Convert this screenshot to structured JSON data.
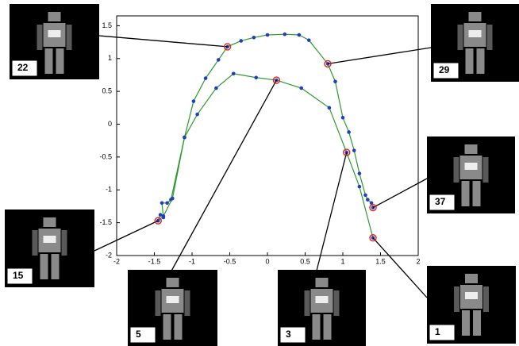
{
  "chart_data": {
    "type": "line",
    "xlim": [
      -2,
      2
    ],
    "ylim": [
      -2,
      1.65
    ],
    "xticks": [
      -2,
      -1.5,
      -1,
      -0.5,
      0,
      0.5,
      1,
      1.5,
      2
    ],
    "yticks": [
      -2,
      -1.5,
      -1,
      -0.5,
      0,
      0.5,
      1,
      1.5
    ],
    "series": [
      {
        "color": "#2e9a2e",
        "marker_color": "#1f3fbf",
        "x": [
          -1.45,
          -1.42,
          -1.38,
          -1.4,
          -1.33,
          -1.28,
          -1.1,
          -0.98,
          -0.82,
          -0.65,
          -0.53,
          -0.35,
          -0.18,
          0.0,
          0.23,
          0.42,
          0.55,
          0.8,
          0.9,
          1.0,
          1.08,
          1.15,
          1.22,
          1.3,
          1.33,
          1.38,
          1.4
        ],
        "values": [
          -1.47,
          -1.38,
          -1.42,
          -1.2,
          -1.2,
          -1.15,
          -0.2,
          0.35,
          0.7,
          0.98,
          1.18,
          1.27,
          1.32,
          1.36,
          1.37,
          1.36,
          1.28,
          0.92,
          0.65,
          0.1,
          -0.12,
          -0.4,
          -0.75,
          -1.08,
          -1.15,
          -1.2,
          -1.27
        ]
      },
      {
        "color": "#2e9a2e",
        "marker_color": "#1f3fbf",
        "x": [
          -1.45,
          -1.38,
          -1.26,
          -1.1,
          -0.93,
          -0.68,
          -0.45,
          -0.15,
          0.12,
          0.45,
          0.82,
          1.05,
          1.22,
          1.4
        ],
        "values": [
          -1.47,
          -1.4,
          -1.13,
          -0.2,
          0.15,
          0.55,
          0.77,
          0.71,
          0.67,
          0.55,
          0.25,
          -0.43,
          -0.95,
          -1.73
        ]
      }
    ],
    "annotations": [
      {
        "label": "22",
        "x": -0.53,
        "y": 1.18
      },
      {
        "label": "29",
        "x": 0.8,
        "y": 0.92
      },
      {
        "label": "37",
        "x": 1.4,
        "y": -1.27
      },
      {
        "label": "15",
        "x": -1.45,
        "y": -1.47
      },
      {
        "label": "5",
        "x": 0.12,
        "y": 0.67
      },
      {
        "label": "3",
        "x": 1.05,
        "y": -0.43
      },
      {
        "label": "1",
        "x": 1.4,
        "y": -1.73
      }
    ]
  }
}
